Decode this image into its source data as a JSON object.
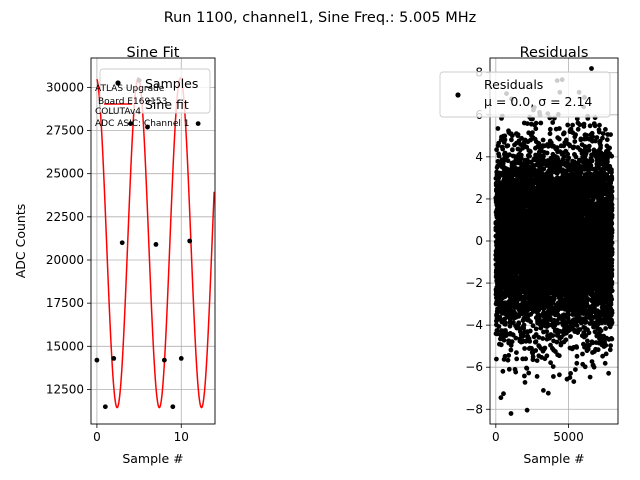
{
  "suptitle": "Run 1100, channel1, Sine Freq.: 5.005 MHz",
  "chart_data": [
    {
      "type": "line",
      "title": "Sine Fit",
      "xlabel": "Sample #",
      "ylabel": "ADC Counts",
      "xlim": [
        -0.7,
        14.0
      ],
      "ylim": [
        10500,
        31700
      ],
      "xticks": [
        0,
        10
      ],
      "yticks": [
        12500,
        15000,
        17500,
        20000,
        22500,
        25000,
        27500,
        30000
      ],
      "yticklabels": [
        "12500",
        "15000",
        "17500",
        "20000",
        "22500",
        "25000",
        "27500",
        "30000"
      ],
      "grid": true,
      "legend": {
        "placement": "upper right",
        "entries": [
          "Samples",
          "Sine fit"
        ]
      },
      "annotation": [
        "ATLAS Upgrade",
        "Board E169153",
        "COLUTAv4",
        "ADC ASIC: Channel 1"
      ],
      "sine_fit": {
        "offset": 21000,
        "amplitude": 9550,
        "period": 5.0,
        "phase_peak_sample": 4.9,
        "color": "#ff0000"
      },
      "series": [
        {
          "name": "Samples",
          "x": [
            0,
            1,
            2,
            3,
            4,
            5,
            6,
            7,
            8,
            9,
            10,
            11,
            12
          ],
          "y": [
            14200,
            11500,
            14300,
            21000,
            27900,
            30400,
            27700,
            20900,
            14200,
            11500,
            14300,
            21100,
            27900
          ],
          "color": "#000000"
        }
      ]
    },
    {
      "type": "scatter",
      "title": "Residuals",
      "xlabel": "Sample #",
      "ylabel": "",
      "xlim": [
        -400,
        8400
      ],
      "ylim": [
        -8.7,
        8.7
      ],
      "xticks": [
        0,
        5000
      ],
      "yticks": [
        -8,
        -6,
        -4,
        -2,
        0,
        2,
        4,
        6,
        8
      ],
      "yticklabels": [
        "−8",
        "−6",
        "−4",
        "−2",
        "0",
        "2",
        "4",
        "6",
        "8"
      ],
      "grid": true,
      "legend": {
        "placement": "upper right",
        "entries": [
          "Residuals"
        ],
        "stats": "μ = 0.0, σ = 2.14"
      },
      "series": [
        {
          "name": "Residuals",
          "n": 8000,
          "mean": 0.0,
          "sigma": 2.14,
          "color": "#000000"
        }
      ]
    }
  ]
}
